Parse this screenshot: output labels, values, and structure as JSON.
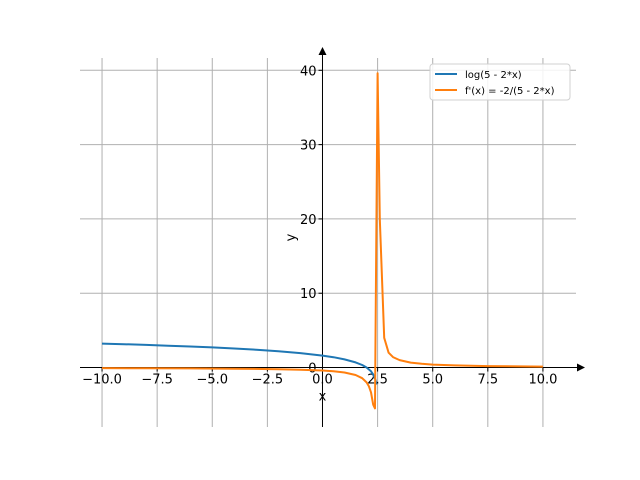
{
  "chart_data": {
    "type": "line",
    "xlabel": "x",
    "ylabel": "y",
    "xlim": [
      -11,
      11.5
    ],
    "ylim": [
      -8,
      43
    ],
    "xticks": [
      -10.0,
      -7.5,
      -5.0,
      -2.5,
      0.0,
      2.5,
      5.0,
      7.5,
      10.0
    ],
    "xtick_labels": [
      "−10.0",
      "−7.5",
      "−5.0",
      "−2.5",
      "0.0",
      "2.5",
      "5.0",
      "7.5",
      "10.0"
    ],
    "yticks": [
      0,
      10,
      20,
      30,
      40
    ],
    "ytick_labels": [
      "0",
      "10",
      "20",
      "30",
      "40"
    ],
    "grid": true,
    "legend_position": "top-right",
    "series": [
      {
        "name": "log(5 - 2*x)",
        "color": "#1f77b4",
        "x": [
          -10,
          -9,
          -8,
          -7,
          -6,
          -5,
          -4,
          -3,
          -2,
          -1,
          0,
          0.5,
          1,
          1.5,
          1.8,
          2.0,
          2.2,
          2.3,
          2.4,
          2.45
        ],
        "y": [
          3.22,
          3.14,
          3.05,
          2.94,
          2.83,
          2.71,
          2.56,
          2.4,
          2.2,
          1.95,
          1.61,
          1.39,
          1.1,
          0.69,
          0.34,
          0.0,
          -0.51,
          -0.92,
          -1.61,
          -2.3
        ]
      },
      {
        "name": "f'(x) = -2/(5 - 2*x)",
        "color": "#ff7f0e",
        "x": [
          -10,
          -8,
          -6,
          -4,
          -2,
          -1,
          0,
          0.5,
          1,
          1.5,
          1.8,
          2.0,
          2.1,
          2.2,
          2.3,
          2.38,
          2.4,
          2.5,
          2.6,
          2.8,
          3.0,
          3.2,
          3.5,
          4.0,
          4.5,
          5.0,
          6.0,
          7.5,
          10.0
        ],
        "y": [
          -0.08,
          -0.1,
          -0.12,
          -0.15,
          -0.22,
          -0.29,
          -0.4,
          -0.5,
          -0.67,
          -1.0,
          -1.43,
          -2.0,
          -2.5,
          -3.33,
          -5.0,
          -5.5,
          2.0,
          39.6,
          20.0,
          4.0,
          2.0,
          1.4,
          1.0,
          0.67,
          0.5,
          0.4,
          0.29,
          0.2,
          0.13
        ]
      }
    ]
  }
}
